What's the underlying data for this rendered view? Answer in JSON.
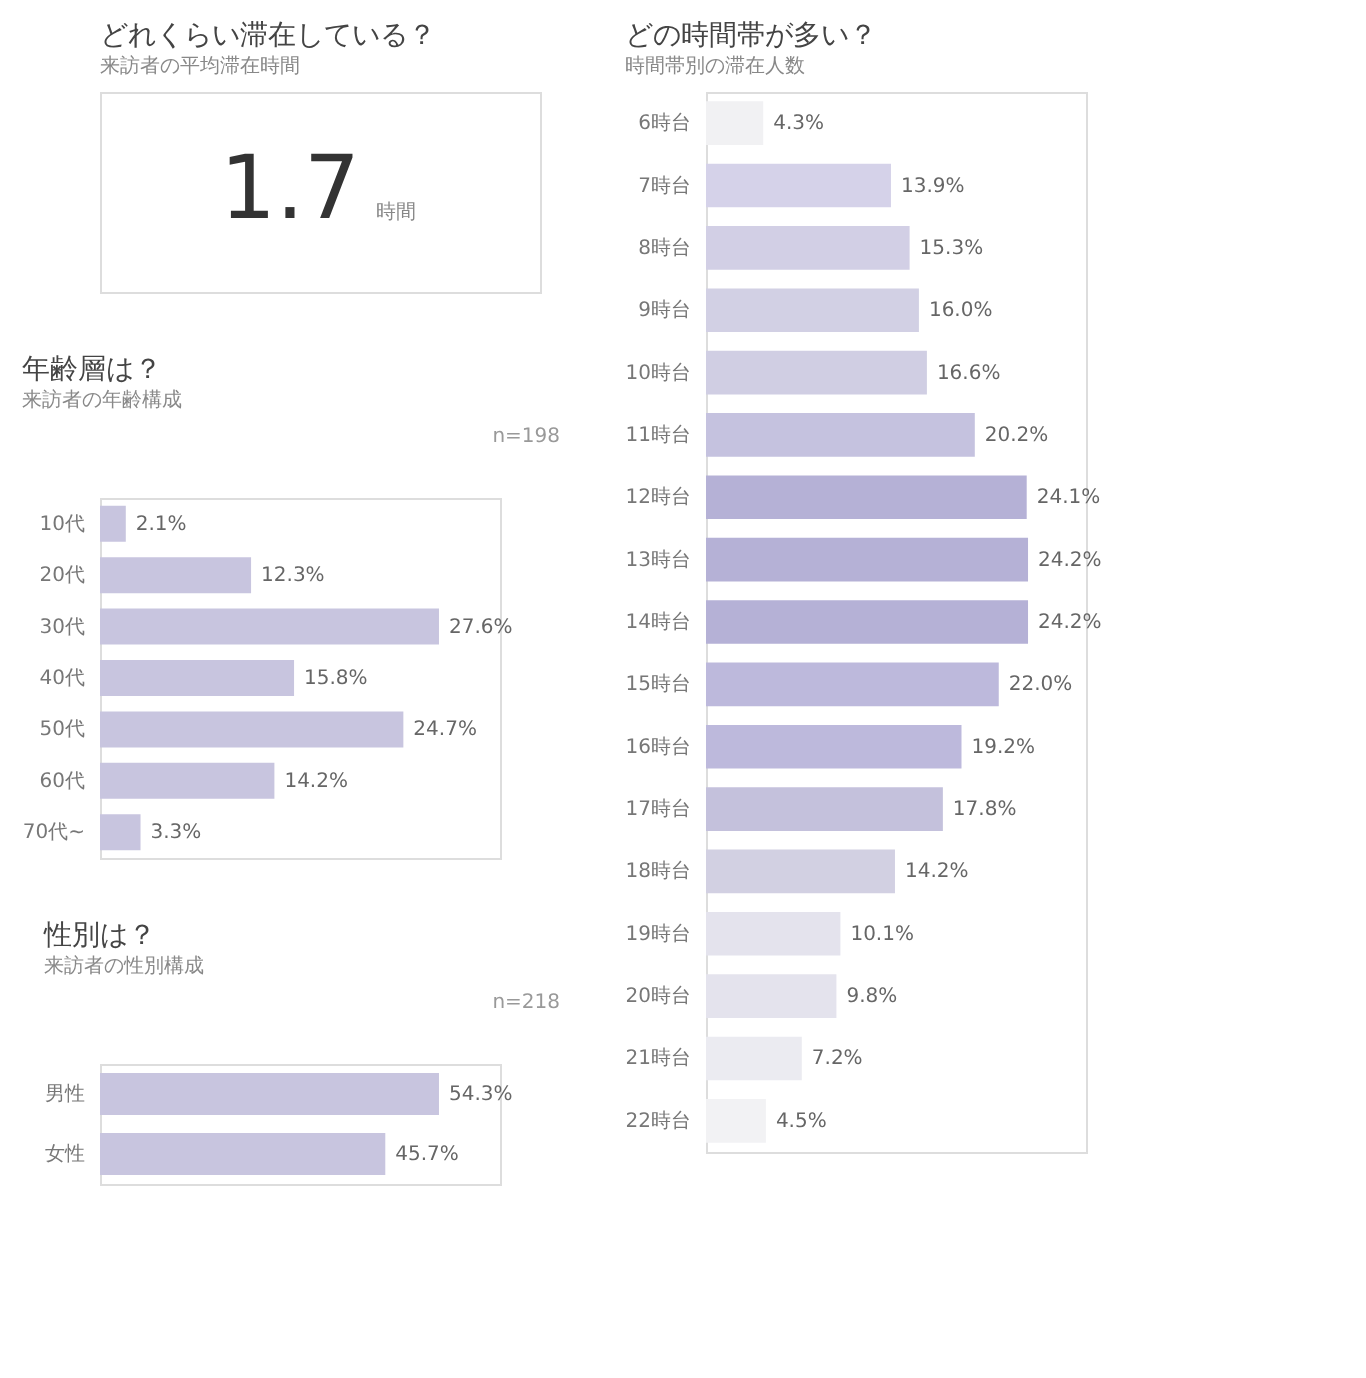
{
  "chart_data": [
    {
      "type": "other",
      "title": "どれくらい滞在している？",
      "subtitle": "来訪者の平均滞在時間",
      "annotations": [
        "1.7",
        "時間"
      ]
    },
    {
      "type": "bar",
      "orientation": "horizontal",
      "title": "年齢層は？",
      "subtitle": "来訪者の年齢構成",
      "annotations": [
        "n=198"
      ],
      "categories": [
        "10代",
        "20代",
        "30代",
        "40代",
        "50代",
        "60代",
        "70代~"
      ],
      "values": [
        2.1,
        12.3,
        27.6,
        15.8,
        24.7,
        14.2,
        3.3
      ],
      "value_labels": [
        "2.1%",
        "12.3%",
        "27.6%",
        "15.8%",
        "24.7%",
        "14.2%",
        "3.3%"
      ],
      "colors": [
        "#c8c5df",
        "#c8c5df",
        "#c8c5df",
        "#c8c5df",
        "#c8c5df",
        "#c8c5df",
        "#c8c5df"
      ]
    },
    {
      "type": "bar",
      "orientation": "horizontal",
      "title": "性別は？",
      "subtitle": "来訪者の性別構成",
      "annotations": [
        "n=218"
      ],
      "categories": [
        "男性",
        "女性"
      ],
      "values": [
        54.3,
        45.7
      ],
      "value_labels": [
        "54.3%",
        "45.7%"
      ],
      "colors": [
        "#c8c5df",
        "#c8c5df"
      ]
    },
    {
      "type": "bar",
      "orientation": "horizontal",
      "title": "どの時間帯が多い？",
      "subtitle": "時間帯別の滞在人数",
      "categories": [
        "6時台",
        "7時台",
        "8時台",
        "9時台",
        "10時台",
        "11時台",
        "12時台",
        "13時台",
        "14時台",
        "15時台",
        "16時台",
        "17時台",
        "18時台",
        "19時台",
        "20時台",
        "21時台",
        "22時台"
      ],
      "values": [
        4.3,
        13.9,
        15.3,
        16.0,
        16.6,
        20.2,
        24.1,
        24.2,
        24.2,
        22.0,
        19.2,
        17.8,
        14.2,
        10.1,
        9.8,
        7.2,
        4.5
      ],
      "value_labels": [
        "4.3%",
        "13.9%",
        "15.3%",
        "16.0%",
        "16.6%",
        "20.2%",
        "24.1%",
        "24.2%",
        "24.2%",
        "22.0%",
        "19.2%",
        "17.8%",
        "14.2%",
        "10.1%",
        "9.8%",
        "7.2%",
        "4.5%"
      ],
      "colors": [
        "#f1f1f3",
        "#d5d2e9",
        "#d2cfe5",
        "#d2d0e4",
        "#d0cee3",
        "#c5c2df",
        "#b5b1d6",
        "#b5b1d6",
        "#b5b1d6",
        "#bdb9dc",
        "#bdb9dc",
        "#c4c1dc",
        "#d2d0e2",
        "#e4e3ed",
        "#e4e3ed",
        "#ebebf1",
        "#f2f2f4"
      ]
    }
  ]
}
